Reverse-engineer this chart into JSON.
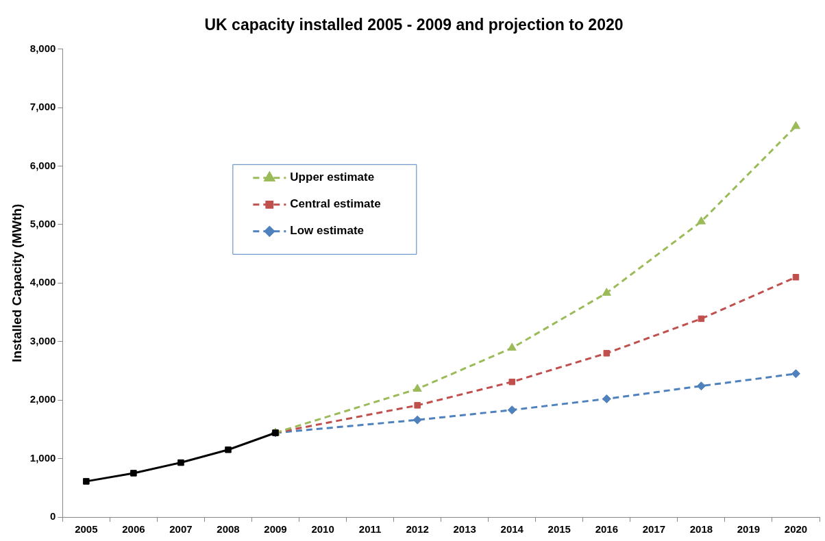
{
  "chart_data": {
    "type": "line",
    "title": "UK capacity installed 2005 - 2009 and projection to 2020",
    "ylabel": "Installed Capacity (MWth)",
    "categories": [
      "2005",
      "2006",
      "2007",
      "2008",
      "2009",
      "2010",
      "2011",
      "2012",
      "2013",
      "2014",
      "2015",
      "2016",
      "2017",
      "2018",
      "2019",
      "2020"
    ],
    "ylim": [
      0,
      8000
    ],
    "yticks": [
      {
        "value": 0,
        "label": "0"
      },
      {
        "value": 1000,
        "label": "1,000"
      },
      {
        "value": 2000,
        "label": "2,000"
      },
      {
        "value": 3000,
        "label": "3,000"
      },
      {
        "value": 4000,
        "label": "4,000"
      },
      {
        "value": 5000,
        "label": "5,000"
      },
      {
        "value": 6000,
        "label": "6,000"
      },
      {
        "value": 7000,
        "label": "7,000"
      },
      {
        "value": 8000,
        "label": "8,000"
      }
    ],
    "grid": false,
    "legend": "center",
    "series": [
      {
        "color": "#000000",
        "marker": "square",
        "line_style": "solid",
        "values": [
          610,
          750,
          930,
          1150,
          1440,
          null,
          null,
          null,
          null,
          null,
          null,
          null,
          null,
          null,
          null,
          null
        ]
      },
      {
        "name": "Upper estimate",
        "color": "#9bbb59",
        "marker": "triangle",
        "line_style": "dashed",
        "values": [
          null,
          null,
          null,
          null,
          1440,
          null,
          null,
          2190,
          null,
          2890,
          null,
          3830,
          null,
          5050,
          null,
          6680
        ]
      },
      {
        "name": "Central estimate",
        "color": "#c0504d",
        "marker": "square",
        "line_style": "dashed",
        "values": [
          null,
          null,
          null,
          null,
          1440,
          null,
          null,
          1910,
          null,
          2310,
          null,
          2800,
          null,
          3390,
          null,
          4100
        ]
      },
      {
        "name": "Low estimate",
        "color": "#4f81bd",
        "marker": "diamond",
        "line_style": "dashed",
        "values": [
          null,
          null,
          null,
          null,
          1440,
          null,
          null,
          1660,
          null,
          1830,
          null,
          2020,
          null,
          2240,
          null,
          2450
        ]
      }
    ]
  }
}
